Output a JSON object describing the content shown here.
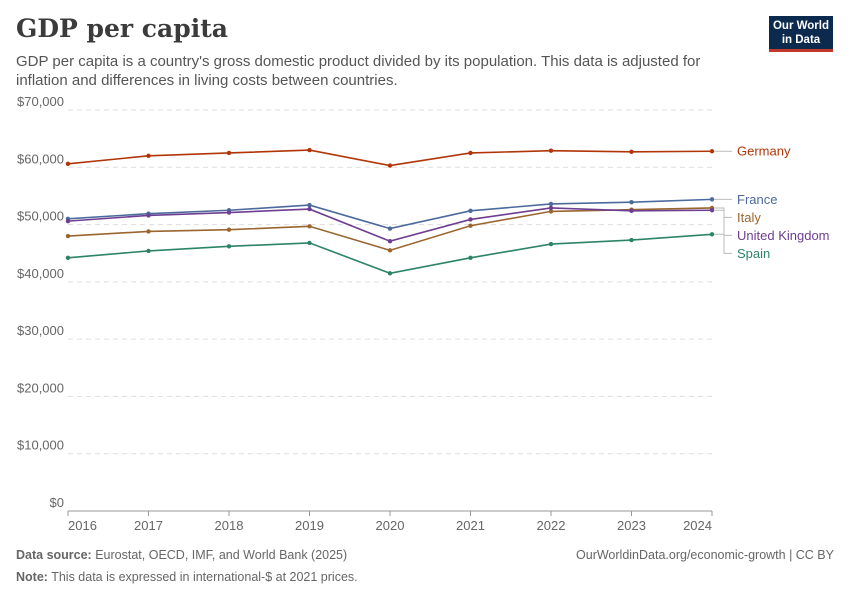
{
  "header": {
    "title": "GDP per capita",
    "subtitle": "GDP per capita is a country's gross domestic product divided by its population. This data is adjusted for inflation and differences in living costs between countries.",
    "logo_line1": "Our World",
    "logo_line2": "in Data"
  },
  "footer": {
    "source_label": "Data source:",
    "source_text": "Eurostat, OECD, IMF, and World Bank (2025)",
    "note_label": "Note:",
    "note_text": "This data is expressed in international-$ at 2021 prices.",
    "link_text": "OurWorldinData.org/economic-growth | CC BY"
  },
  "chart_data": {
    "type": "line",
    "title": "GDP per capita",
    "x": [
      2016,
      2017,
      2018,
      2019,
      2020,
      2021,
      2022,
      2023,
      2024
    ],
    "xticks": [
      "2016",
      "2017",
      "2018",
      "2019",
      "2020",
      "2021",
      "2022",
      "2023",
      "2024"
    ],
    "ylim": [
      0,
      70000
    ],
    "yticks": [
      0,
      10000,
      20000,
      30000,
      40000,
      50000,
      60000,
      70000
    ],
    "ytick_labels": [
      "$0",
      "$10,000",
      "$20,000",
      "$30,000",
      "$40,000",
      "$50,000",
      "$60,000",
      "$70,000"
    ],
    "grid": "horizontal dashed",
    "legend": "right (end labels)",
    "series": [
      {
        "name": "Germany",
        "color": "#b13507",
        "values": [
          60600,
          62000,
          62500,
          63000,
          60300,
          62500,
          62900,
          62700,
          62800
        ]
      },
      {
        "name": "France",
        "color": "#4c6a9c",
        "values": [
          51000,
          51900,
          52500,
          53400,
          49300,
          52400,
          53600,
          53900,
          54400
        ]
      },
      {
        "name": "Italy",
        "color": "#9a652e",
        "values": [
          48000,
          48800,
          49100,
          49700,
          45500,
          49800,
          52300,
          52600,
          52900
        ]
      },
      {
        "name": "United Kingdom",
        "color": "#6d3e91",
        "values": [
          50600,
          51600,
          52100,
          52700,
          47100,
          50900,
          52900,
          52400,
          52500
        ]
      },
      {
        "name": "Spain",
        "color": "#2c8465",
        "values": [
          44200,
          45400,
          46200,
          46800,
          41500,
          44200,
          46600,
          47300,
          48300
        ]
      }
    ]
  }
}
